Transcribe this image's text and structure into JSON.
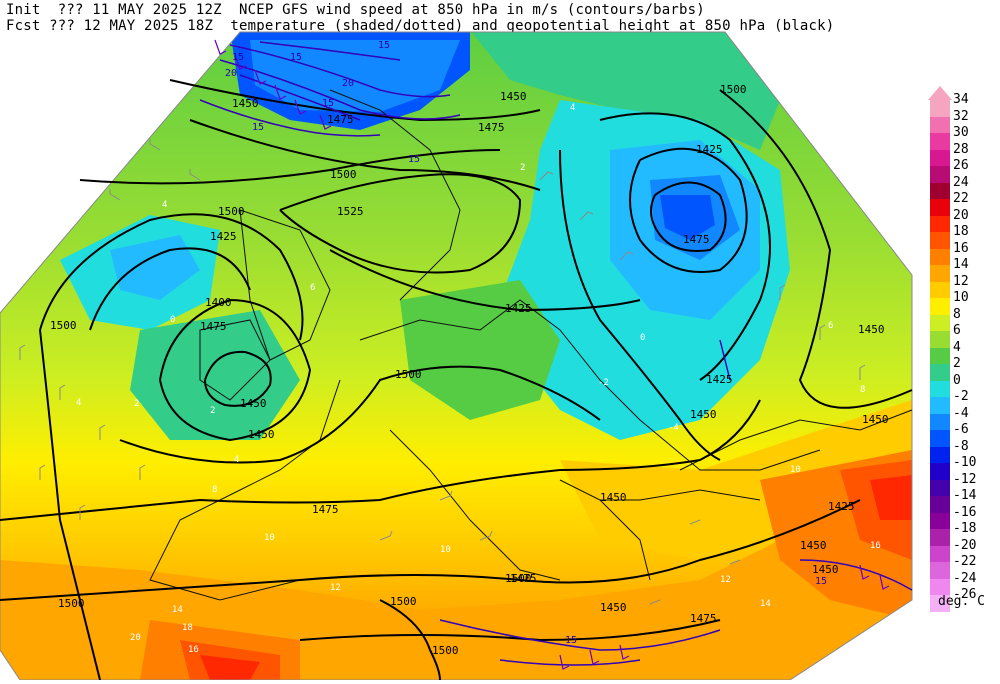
{
  "header": {
    "line1": "Init  ??? 11 MAY 2025 12Z  NCEP GFS wind speed at 850 hPa in m/s (contours/barbs)",
    "line2": "Fcst ??? 12 MAY 2025 18Z  temperature (shaded/dotted) and geopotential height at 850 hPa (black)"
  },
  "colorbar": {
    "units": "deg. C",
    "levels": [
      {
        "label": "34",
        "color": "#f6a5c0"
      },
      {
        "label": "32",
        "color": "#f070b0"
      },
      {
        "label": "30",
        "color": "#e83aa0"
      },
      {
        "label": "28",
        "color": "#d81890"
      },
      {
        "label": "26",
        "color": "#b80c74"
      },
      {
        "label": "24",
        "color": "#a00030"
      },
      {
        "label": "22",
        "color": "#e8000a"
      },
      {
        "label": "20",
        "color": "#ff2800"
      },
      {
        "label": "18",
        "color": "#ff5500"
      },
      {
        "label": "16",
        "color": "#ff8000"
      },
      {
        "label": "14",
        "color": "#ffa600"
      },
      {
        "label": "12",
        "color": "#ffcc00"
      },
      {
        "label": "10",
        "color": "#ffee00"
      },
      {
        "label": "8",
        "color": "#ccee22"
      },
      {
        "label": "6",
        "color": "#99dd33"
      },
      {
        "label": "4",
        "color": "#55cc44"
      },
      {
        "label": "2",
        "color": "#33cc88"
      },
      {
        "label": "0",
        "color": "#22dddd"
      },
      {
        "label": "-2",
        "color": "#22bbff"
      },
      {
        "label": "-4",
        "color": "#1188ff"
      },
      {
        "label": "-6",
        "color": "#0055ff"
      },
      {
        "label": "-8",
        "color": "#0022ee"
      },
      {
        "label": "-10",
        "color": "#2200cc"
      },
      {
        "label": "-12",
        "color": "#4400aa"
      },
      {
        "label": "-14",
        "color": "#660099"
      },
      {
        "label": "-16",
        "color": "#880099"
      },
      {
        "label": "-18",
        "color": "#aa22aa"
      },
      {
        "label": "-20",
        "color": "#cc44cc"
      },
      {
        "label": "-22",
        "color": "#dd66dd"
      },
      {
        "label": "-24",
        "color": "#ee88ee"
      },
      {
        "label": "-26",
        "color": "#f5b0f5"
      }
    ]
  },
  "height_labels": [
    "1450",
    "1475",
    "1500",
    "1525",
    "1425",
    "1400",
    "1450",
    "1500",
    "1475",
    "1450",
    "1425",
    "1500",
    "1450",
    "1475",
    "1500",
    "1475",
    "1450",
    "1425",
    "1475",
    "1500",
    "1450",
    "1450",
    "1425",
    "1450",
    "1475",
    "1500",
    "1500",
    "1500",
    "1475",
    "1450",
    "1425",
    "1450",
    "1450",
    "1500"
  ],
  "wind_labels": [
    "15",
    "20",
    "15",
    "15",
    "20",
    "15",
    "15",
    "15",
    "15",
    "15"
  ],
  "temp_labels": [
    "4",
    "4",
    "2",
    "0",
    "2",
    "4",
    "6",
    "8",
    "10",
    "12",
    "14",
    "16",
    "18",
    "20",
    "-2",
    "0",
    "-4",
    "4",
    "2",
    "10",
    "12",
    "14",
    "16",
    "8",
    "6",
    "10"
  ]
}
